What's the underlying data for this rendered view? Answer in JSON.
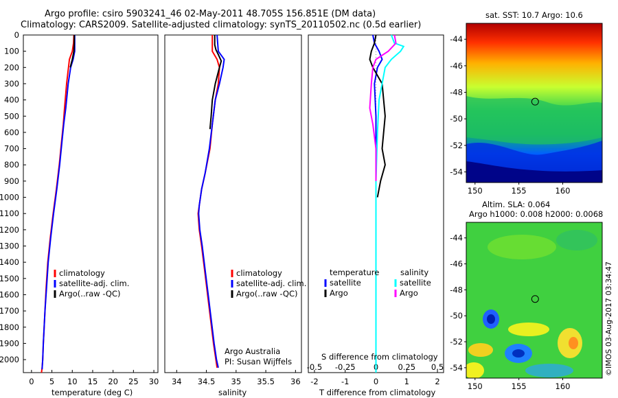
{
  "header": {
    "line1": "Argo profile: csiro 5903241_46 02-May-2011 48.705S 156.851E (DM data)",
    "line2": "Climatology: CARS2009. Satellite-adjusted climatology: synTS_20110502.nc (0.5d earlier)"
  },
  "colors": {
    "climatology": "#ff0000",
    "satellite": "#0000ff",
    "argo": "#000000",
    "satellite_salinity": "#00ffff",
    "argo_salinity": "#ff00ff"
  },
  "chart_data": [
    {
      "type": "line",
      "xlabel": "temperature (deg C)",
      "ylabel": "",
      "xlim": [
        -2,
        31
      ],
      "ylim": [
        2080,
        0
      ],
      "xticks": [
        0,
        5,
        10,
        15,
        20,
        25,
        30
      ],
      "yticks": [
        0,
        100,
        200,
        300,
        400,
        500,
        600,
        700,
        800,
        900,
        1000,
        1100,
        1200,
        1300,
        1400,
        1500,
        1600,
        1700,
        1800,
        1900,
        2000
      ],
      "legend": [
        "climatology",
        "satellite-adj. clim.",
        "Argo(..raw -QC)"
      ],
      "series": [
        {
          "name": "climatology",
          "color": "#ff0000",
          "x": [
            10.4,
            10.3,
            10.0,
            9.3,
            8.6,
            8.1,
            7.8,
            7.4,
            6.8,
            6.1,
            5.3,
            4.6,
            4.0,
            3.6,
            3.3,
            3.1,
            2.9,
            2.75,
            2.6,
            2.5,
            2.45
          ],
          "y": [
            0,
            50,
            100,
            150,
            300,
            450,
            550,
            650,
            800,
            950,
            1100,
            1250,
            1400,
            1550,
            1700,
            1800,
            1900,
            2000,
            2050,
            2070,
            2080
          ]
        },
        {
          "name": "satellite-adj. clim.",
          "color": "#0000ff",
          "x": [
            10.6,
            10.6,
            10.6,
            10.2,
            9.6,
            9.0,
            8.4,
            7.9,
            7.5,
            6.9,
            6.2,
            5.4,
            4.7,
            4.1,
            3.7,
            3.3,
            3.1,
            2.9,
            2.75,
            2.6
          ],
          "y": [
            0,
            50,
            100,
            150,
            200,
            300,
            450,
            550,
            650,
            800,
            950,
            1100,
            1250,
            1400,
            1550,
            1700,
            1800,
            1900,
            2000,
            2060
          ]
        },
        {
          "name": "Argo(..raw -QC)",
          "color": "#000000",
          "x": [
            10.5,
            10.5,
            10.4,
            10.0,
            9.5
          ],
          "y": [
            0,
            50,
            100,
            150,
            200
          ]
        }
      ]
    },
    {
      "type": "line",
      "xlabel": "salinity",
      "ylabel": "",
      "xlim": [
        33.8,
        36.1
      ],
      "ylim": [
        2080,
        0
      ],
      "xticks": [
        34,
        34.5,
        35,
        35.5,
        36
      ],
      "legend": [
        "climatology",
        "satellite-adj. clim.",
        "Argo(..raw -QC)"
      ],
      "annotation": [
        "Argo Australia",
        "PI: Susan Wijffels"
      ],
      "series": [
        {
          "name": "climatology",
          "color": "#ff0000",
          "x": [
            34.6,
            34.6,
            34.68,
            34.72,
            34.7,
            34.65,
            34.6,
            34.56,
            34.48,
            34.42,
            34.38,
            34.36,
            34.38,
            34.42,
            34.47,
            34.52,
            34.57,
            34.62,
            34.66,
            34.68
          ],
          "y": [
            0,
            100,
            150,
            200,
            300,
            400,
            550,
            700,
            850,
            950,
            1050,
            1100,
            1200,
            1300,
            1450,
            1600,
            1750,
            1900,
            2000,
            2050
          ]
        },
        {
          "name": "satellite-adj. clim.",
          "color": "#0000ff",
          "x": [
            34.68,
            34.7,
            34.8,
            34.78,
            34.72,
            34.65,
            34.6,
            34.55,
            34.48,
            34.42,
            34.38,
            34.37,
            34.39,
            34.43,
            34.48,
            34.53,
            34.58,
            34.63,
            34.67,
            34.7
          ],
          "y": [
            0,
            100,
            150,
            200,
            300,
            400,
            550,
            700,
            850,
            950,
            1050,
            1100,
            1200,
            1300,
            1450,
            1600,
            1750,
            1900,
            2000,
            2050
          ]
        },
        {
          "name": "Argo(..raw -QC)",
          "color": "#000000",
          "x": [
            34.64,
            34.64,
            34.66,
            34.7,
            34.75,
            34.72,
            34.65,
            34.6,
            34.58,
            34.56
          ],
          "y": [
            0,
            60,
            90,
            120,
            160,
            200,
            300,
            400,
            500,
            580
          ]
        }
      ]
    },
    {
      "type": "line",
      "xlabel": "T difference from climatology",
      "xlabel_top": "S difference from climatology",
      "xlim": [
        -2.2,
        2.2
      ],
      "ylim": [
        2080,
        0
      ],
      "xticks": [
        -2,
        -1,
        0,
        1,
        2
      ],
      "xticks_top": [
        "-0.5",
        "-0.25",
        "0",
        "0.25",
        "0.5"
      ],
      "legend_left_title": "temperature",
      "legend_right_title": "salinity",
      "legend": [
        "satellite",
        "Argo",
        "satellite",
        "Argo"
      ],
      "series": [
        {
          "name": "satellite",
          "color": "#0000ff",
          "x": [
            -0.1,
            -0.05,
            0.1,
            0.2,
            0.05,
            -0.05,
            0.0,
            0.0,
            0.0,
            0.0,
            0.0,
            0.0,
            0.0
          ],
          "y": [
            0,
            50,
            100,
            150,
            200,
            300,
            500,
            800,
            1100,
            1200,
            1400,
            1800,
            2080
          ]
        },
        {
          "name": "Argo",
          "color": "#000000",
          "x": [
            0.0,
            -0.05,
            -0.15,
            -0.2,
            -0.1,
            0.2,
            0.3,
            0.2,
            0.3,
            0.15,
            0.05
          ],
          "y": [
            0,
            50,
            100,
            150,
            200,
            300,
            500,
            700,
            800,
            900,
            1000
          ]
        },
        {
          "name": "satellite",
          "color": "#00ffff",
          "x": [
            0.5,
            0.6,
            0.9,
            0.8,
            0.5,
            0.3,
            0.1,
            0.05,
            0.0,
            0.0,
            0.0
          ],
          "y": [
            0,
            50,
            70,
            100,
            150,
            200,
            400,
            600,
            900,
            1400,
            2080
          ]
        },
        {
          "name": "Argo",
          "color": "#ff00ff",
          "x": [
            0.6,
            0.65,
            0.4,
            0.0,
            -0.1,
            -0.15,
            -0.2,
            -0.1,
            0.0,
            0.0
          ],
          "y": [
            0,
            50,
            100,
            150,
            200,
            300,
            450,
            550,
            700,
            900
          ]
        }
      ]
    },
    {
      "type": "heatmap",
      "title": "sat. SST: 10.7 Argo: 10.6",
      "xticks": [
        150,
        155,
        160
      ],
      "yticks": [
        -44,
        -46,
        -48,
        -50,
        -52,
        -54
      ],
      "xlim": [
        149,
        164.5
      ],
      "ylim": [
        -54.8,
        -42.8
      ],
      "marker": {
        "lon": 156.851,
        "lat": -48.705
      }
    },
    {
      "type": "heatmap",
      "title": "Altim. SLA: 0.064",
      "subtitle": "Argo h1000: 0.008 h2000: 0.0068",
      "xticks": [
        150,
        155,
        160
      ],
      "yticks": [
        -44,
        -46,
        -48,
        -50,
        -52,
        -54
      ],
      "xlim": [
        149,
        164.5
      ],
      "ylim": [
        -54.8,
        -42.8
      ],
      "marker": {
        "lon": 156.851,
        "lat": -48.705
      }
    }
  ],
  "stamp": "©IMOS 03-Aug-2017 03:34:47"
}
